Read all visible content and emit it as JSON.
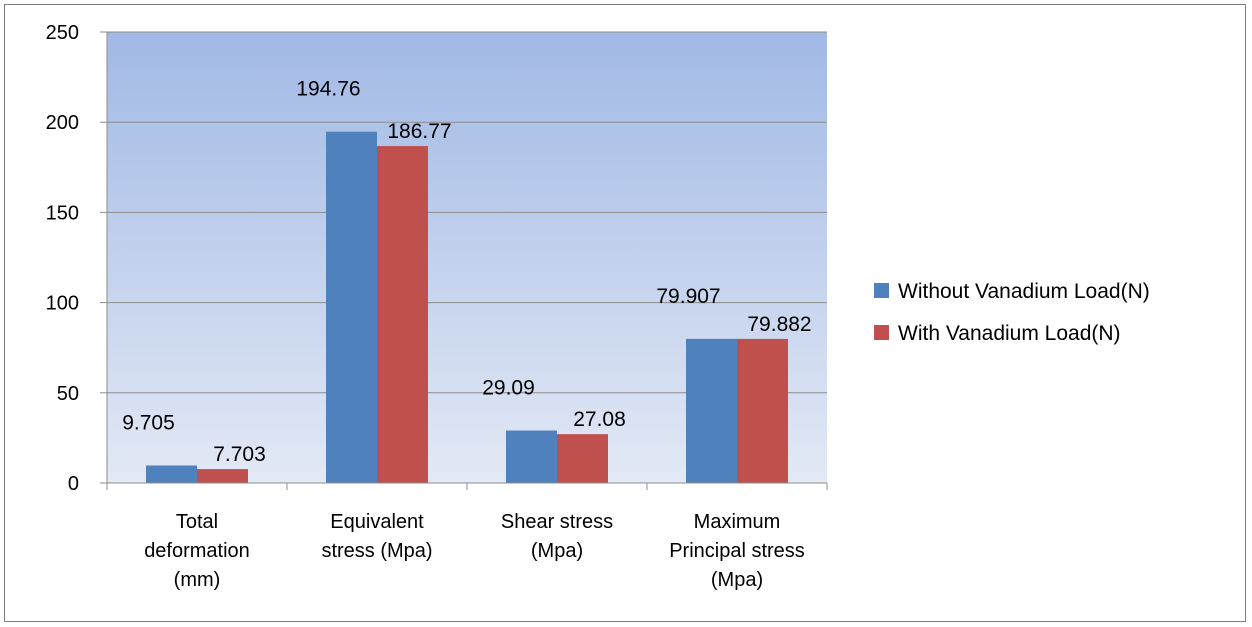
{
  "chart_data": {
    "type": "bar",
    "categories": [
      [
        "Total",
        "deformation",
        "(mm)"
      ],
      [
        "Equivalent",
        "stress (Mpa)"
      ],
      [
        "Shear stress",
        "(Mpa)"
      ],
      [
        "Maximum",
        "Principal stress",
        "(Mpa)"
      ]
    ],
    "series": [
      {
        "name": "Without Vanadium Load(N)",
        "color": "#4f81bd",
        "values": [
          9.705,
          194.76,
          29.09,
          79.907
        ],
        "labels": [
          "9.705",
          "194.76",
          "29.09",
          "79.907"
        ]
      },
      {
        "name": "With Vanadium Load(N)",
        "color": "#c0504d",
        "values": [
          7.703,
          186.77,
          27.08,
          79.882
        ],
        "labels": [
          "7.703",
          "186.77",
          "27.08",
          "79.882"
        ]
      }
    ],
    "ylim": [
      0,
      250
    ],
    "yticks": [
      0,
      50,
      100,
      150,
      200,
      250
    ],
    "title": "",
    "xlabel": "",
    "ylabel": "",
    "grid": true,
    "legend_position": "right",
    "plot_background": {
      "top": "#a1b9e5",
      "bottom": "#e3e9f5"
    }
  }
}
